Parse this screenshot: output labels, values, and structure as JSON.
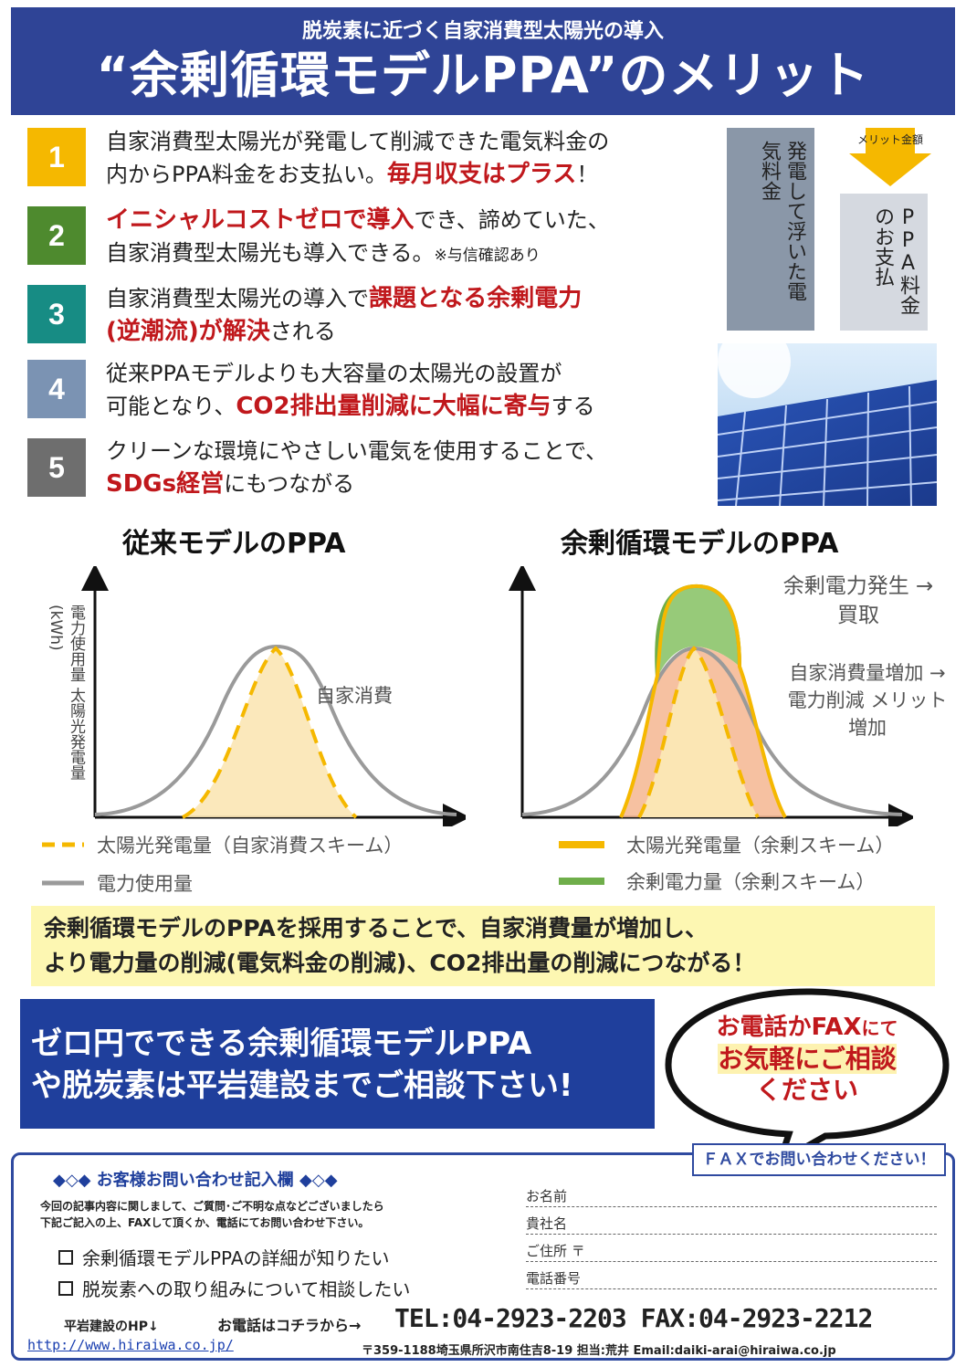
{
  "header": {
    "subtitle": "脱炭素に近づく自家消費型太陽光の導入",
    "title": "“余剰循環モデルPPA”のメリット"
  },
  "merits": [
    {
      "num": "1",
      "color": "#f5b800",
      "line1": "自家消費型太陽光が発電して削減できた電気料金の",
      "line2_a": "内からPPA料金をお支払い。",
      "line2_red": "毎月収支はプラス",
      "line2_b": "！"
    },
    {
      "num": "2",
      "color": "#4e8a2e",
      "line1_red": "イニシャルコストゼロで導入",
      "line1_b": "でき、諦めていた、",
      "line2_a": "自家消費型太陽光も導入できる。",
      "line2_small": "※与信確認あり"
    },
    {
      "num": "3",
      "color": "#178c84",
      "line1_a": "自家消費型太陽光の導入で",
      "line1_red": "課題となる余剰電力",
      "line2_red": "(逆潮流)が解決",
      "line2_b": "される"
    },
    {
      "num": "4",
      "color": "#7b93b3",
      "line1": "従来PPAモデルよりも大容量の太陽光の設置が",
      "line2_a": "可能となり、",
      "line2_red": "CO2排出量削減に大幅に寄与",
      "line2_b": "する"
    },
    {
      "num": "5",
      "color": "#6e6e6e",
      "line1": "クリーンな環境にやさしい電気を使用することで、",
      "line2_red": "SDGs経営",
      "line2_b": "にもつながる"
    }
  ],
  "side": {
    "box1": "発電して浮いた電気料金",
    "arrow_label": "メリット金額",
    "box2": "PPA料金のお支払"
  },
  "charts": {
    "left_title": "従来モデルのPPA",
    "right_title": "余剰循環モデルのPPA",
    "y_axis_label": "電力使用量 太陽光発電量 (kWh)",
    "left_annotation": "自家消費",
    "right_annotation1": "余剰電力発生 →買取",
    "right_annotation2": "自家消費量増加 →電力削減 メリット増加",
    "legend_left_1": "太陽光発電量（自家消費スキーム）",
    "legend_left_2": "電力使用量",
    "legend_right_1": "太陽光発電量（余剰スキーム）",
    "legend_right_2": "余剰電力量（余剰スキーム）"
  },
  "summary": {
    "line1": "余剰循環モデルのPPAを採用することで、自家消費量が増加し、",
    "line2": "より電力量の削減(電気料金の削減)、CO2排出量の削減につながる！"
  },
  "cta": {
    "line1": "ゼロ円でできる余剰循環モデルPPA",
    "line2": "や脱炭素は平岩建設までご相談下さい!",
    "bubble_1a": "お電話かFAX",
    "bubble_1b": "にて",
    "bubble_2": "お気軽にご相談",
    "bubble_3": "ください"
  },
  "form": {
    "fax_tag": "ＦＡＸでお問い合わせください！",
    "title": "◆◇◆ お客様お問い合わせ記入欄 ◆◇◆",
    "desc1": "今回の記事内容に関しまして、ご質問･ご不明な点などございましたら",
    "desc2": "下記ご記入の上、FAXして頂くか、電話にてお問い合わせ下さい。",
    "check1": "余剰循環モデルPPAの詳細が知りたい",
    "check2": "脱炭素への取り組みについて相談したい",
    "field_name": "お名前",
    "field_company": "貴社名",
    "field_address": "ご住所 〒",
    "field_phone": "電話番号",
    "hp_label": "平岩建設のHP↓",
    "hp_url": "http://www.hiraiwa.co.jp/",
    "tel_lead": "お電話はコチラから→",
    "tel": "TEL:04-2923-2203 FAX:04-2923-2212",
    "address": "〒359-1188埼玉県所沢市南住吉8-19 担当:荒井 Email:daiki-arai@hiraiwa.co.jp"
  },
  "colors": {
    "header_blue": "#2f4496",
    "accent_red": "#c0181c",
    "solar_yellow": "#f5b800",
    "surplus_green": "#6fae4a",
    "usage_gray": "#9a9a9a"
  }
}
